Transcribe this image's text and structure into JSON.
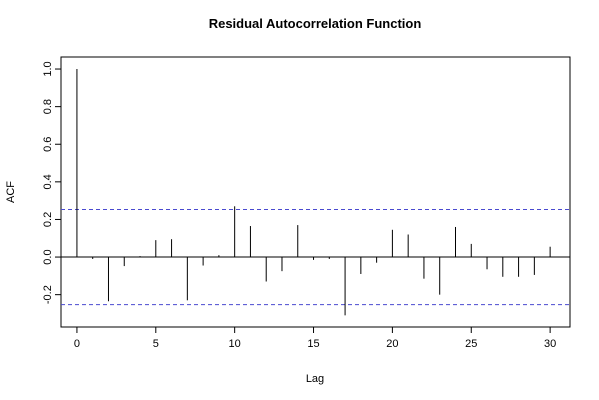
{
  "chart_data": {
    "type": "acf",
    "title": "Residual Autocorrelation Function",
    "x_label": "Lag",
    "y_label": "ACF",
    "x": [
      0,
      1,
      2,
      3,
      4,
      5,
      6,
      7,
      8,
      9,
      10,
      11,
      12,
      13,
      14,
      15,
      16,
      17,
      18,
      19,
      20,
      21,
      22,
      23,
      24,
      25,
      26,
      27,
      28,
      29,
      30
    ],
    "values": [
      1.0,
      -0.01,
      -0.235,
      -0.048,
      0.005,
      0.09,
      0.095,
      -0.23,
      -0.045,
      0.01,
      0.27,
      0.165,
      -0.13,
      -0.075,
      0.17,
      -0.015,
      -0.01,
      -0.31,
      -0.09,
      -0.03,
      0.145,
      0.12,
      -0.115,
      -0.2,
      0.16,
      0.07,
      -0.065,
      -0.105,
      -0.105,
      -0.095,
      0.055
    ],
    "color": "#000000",
    "conf_limits": [
      -0.253,
      0.253
    ],
    "conf_color": "#4a4ad0",
    "xlim": [
      -1.01,
      31.26
    ],
    "ylim": [
      -0.372,
      1.064
    ],
    "xticks": [
      0,
      5,
      10,
      15,
      20,
      25,
      30
    ],
    "yticks": [
      -0.2,
      {
        "value": 0,
        "label": "0.0"
      },
      0.2,
      0.4,
      0.6,
      0.8,
      {
        "value": 1,
        "label": "1.0"
      }
    ]
  }
}
